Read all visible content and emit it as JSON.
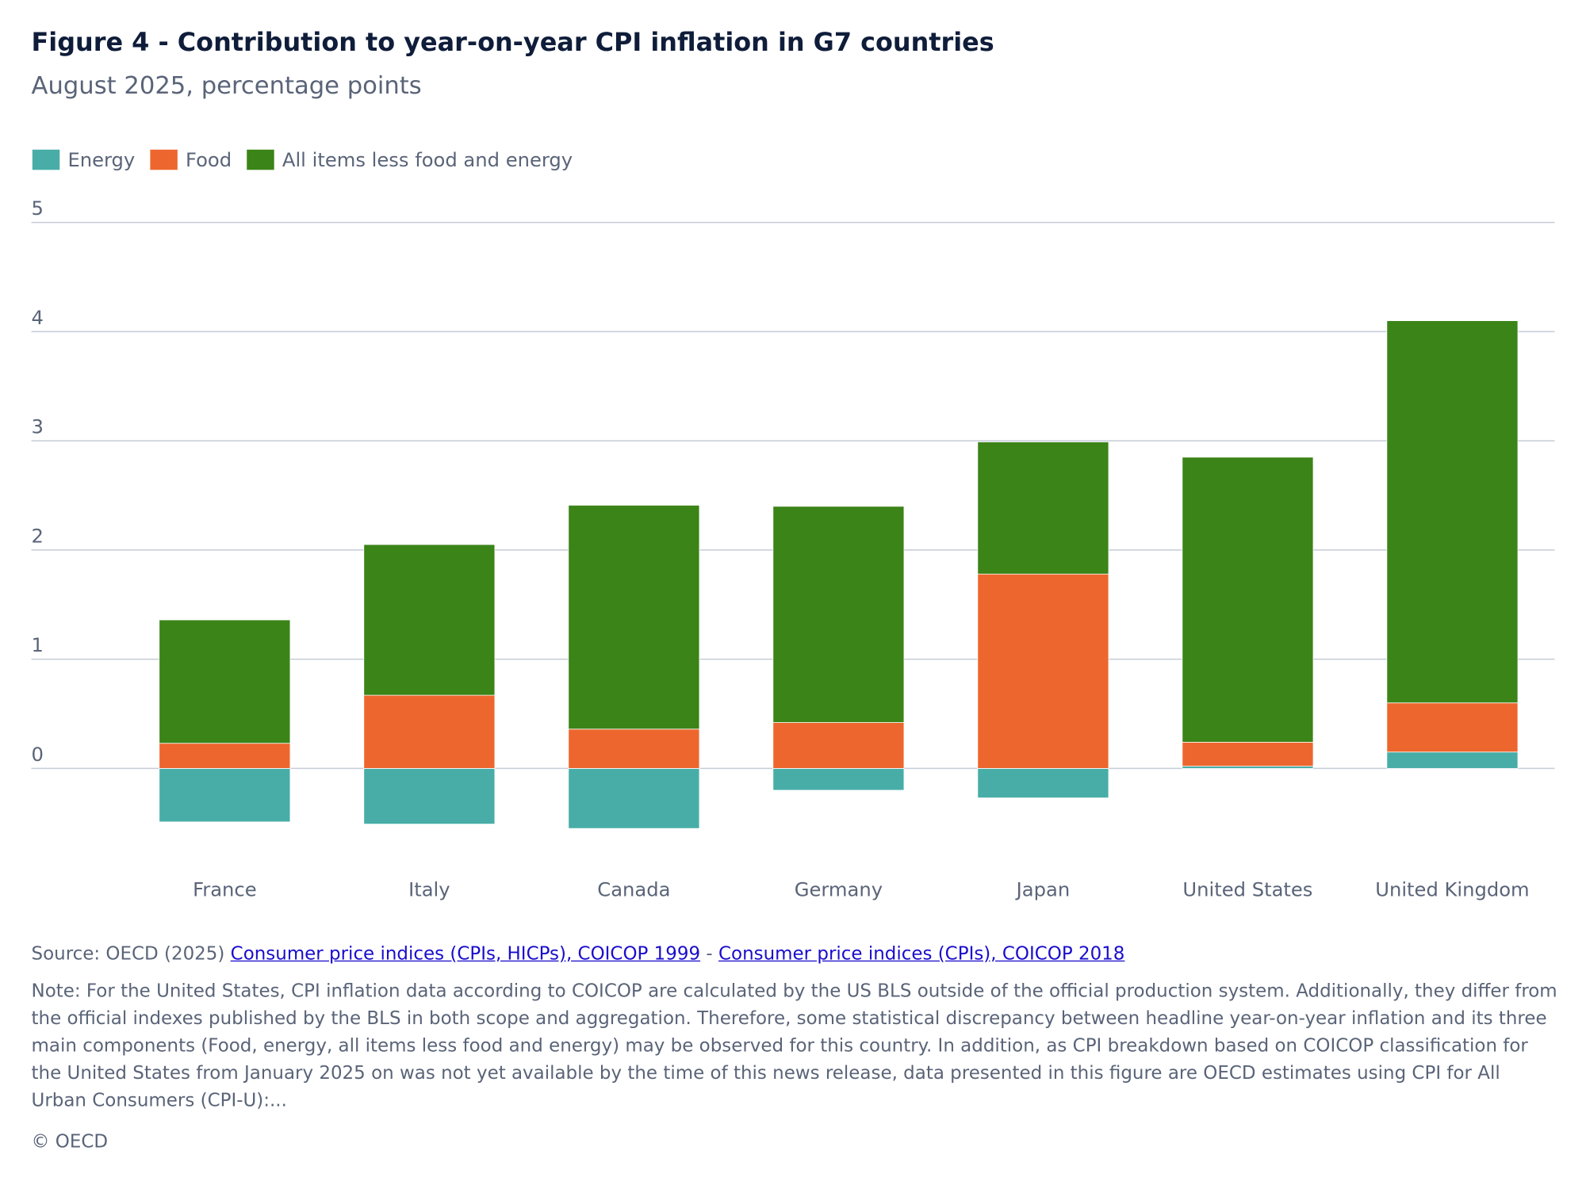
{
  "chart_data": {
    "type": "stacked-bar",
    "title": "Figure 4 - Contribution to year-on-year CPI inflation in G7 countries",
    "subtitle": "August 2025, percentage points",
    "categories": [
      "France",
      "Italy",
      "Canada",
      "Germany",
      "Japan",
      "United States",
      "United Kingdom"
    ],
    "series": [
      {
        "name": "Energy",
        "color": "#48ada7",
        "values": [
          -0.49,
          -0.51,
          -0.55,
          -0.2,
          -0.27,
          0.02,
          0.15
        ]
      },
      {
        "name": "Food",
        "color": "#ed662d",
        "values": [
          0.23,
          0.67,
          0.36,
          0.42,
          1.78,
          0.22,
          0.45
        ]
      },
      {
        "name": "All items less food and energy",
        "color": "#3b8418",
        "values": [
          1.13,
          1.38,
          2.05,
          1.98,
          1.21,
          2.61,
          3.5
        ]
      }
    ],
    "ylim": [
      -0.75,
      5
    ],
    "yticks": [
      0,
      1,
      2,
      3,
      4,
      5
    ],
    "grid": true,
    "legend": "top-left"
  },
  "source": {
    "prefix": "Source: OECD (2025)",
    "links": [
      "Consumer price indices (CPIs, HICPs), COICOP 1999",
      "Consumer price indices (CPIs), COICOP 2018"
    ],
    "separator": "-"
  },
  "note": "Note: For the United States, CPI inflation data according to COICOP are calculated by the US BLS outside of the official production system. Additionally, they differ from the official indexes published by the BLS in both scope and aggregation. Therefore, some statistical discrepancy between headline year-on-year inflation and its three main components (Food, energy, all items less food and energy) may be observed for this country. In addition, as CPI breakdown based on COICOP classification for the United States from January 2025 on was not yet available by the time of this news release, data presented in this figure are OECD estimates using CPI for All Urban Consumers (CPI-U):...",
  "copyright": "© OECD"
}
